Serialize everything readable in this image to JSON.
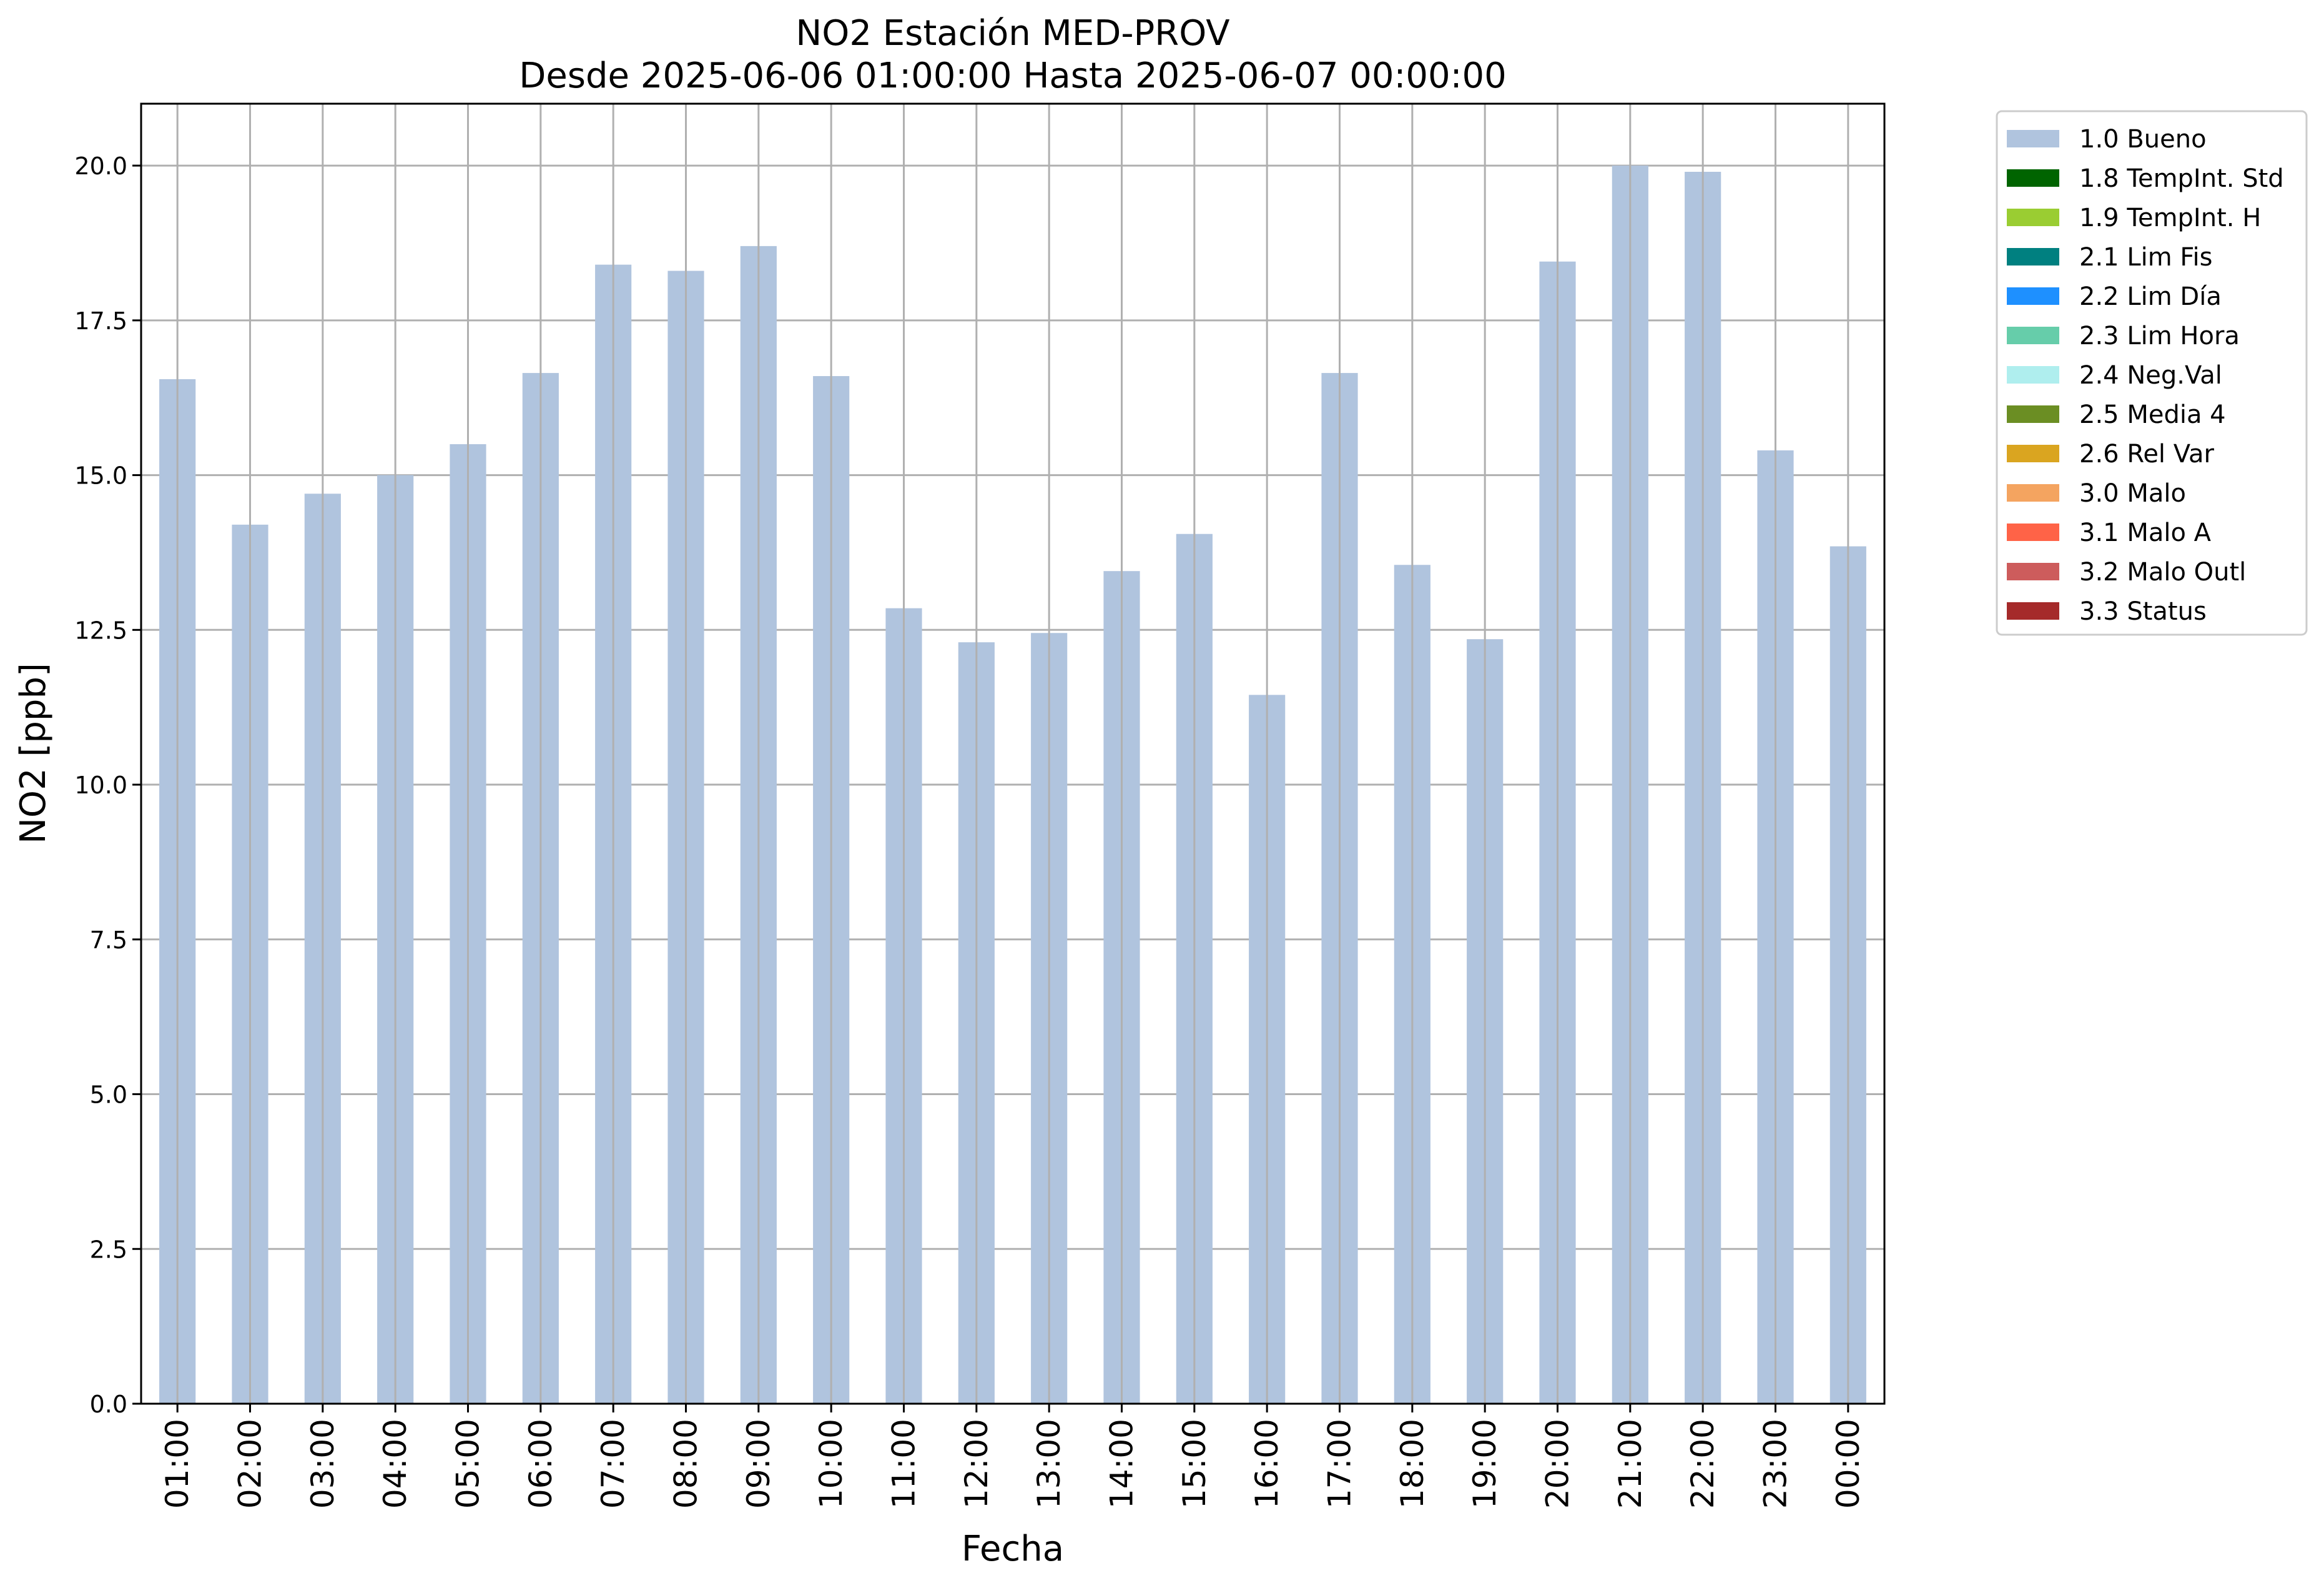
{
  "chart_data": {
    "type": "bar",
    "title": "NO2 Estación MED-PROV",
    "subtitle": "Desde 2025-06-06 01:00:00 Hasta 2025-06-07 00:00:00",
    "xlabel": "Fecha",
    "ylabel": "NO2 [ppb]",
    "ylim": [
      0,
      21
    ],
    "yticks": [
      "0.0",
      "2.5",
      "5.0",
      "7.5",
      "10.0",
      "12.5",
      "15.0",
      "17.5",
      "20.0"
    ],
    "grid": true,
    "legend_position": "outside-right",
    "categories": [
      "01:00",
      "02:00",
      "03:00",
      "04:00",
      "05:00",
      "06:00",
      "07:00",
      "08:00",
      "09:00",
      "10:00",
      "11:00",
      "12:00",
      "13:00",
      "14:00",
      "15:00",
      "16:00",
      "17:00",
      "18:00",
      "19:00",
      "20:00",
      "21:00",
      "22:00",
      "23:00",
      "00:00"
    ],
    "series": [
      {
        "name": "1.0 Bueno",
        "color": "#b0c4de",
        "values": [
          16.55,
          14.2,
          14.7,
          15.0,
          15.5,
          16.65,
          18.4,
          18.3,
          18.7,
          16.6,
          12.85,
          12.3,
          12.45,
          13.45,
          14.05,
          11.45,
          16.65,
          13.55,
          12.35,
          18.45,
          20.0,
          19.9,
          15.4,
          13.85
        ]
      }
    ],
    "legend": [
      {
        "label": "1.0 Bueno",
        "color": "#b0c4de"
      },
      {
        "label": "1.8 TempInt. Std",
        "color": "#006400"
      },
      {
        "label": "1.9 TempInt. H",
        "color": "#9acd32"
      },
      {
        "label": "2.1 Lim Fis",
        "color": "#008080"
      },
      {
        "label": "2.2 Lim Día",
        "color": "#1e90ff"
      },
      {
        "label": "2.3 Lim Hora",
        "color": "#66cdaa"
      },
      {
        "label": "2.4 Neg.Val",
        "color": "#afeeee"
      },
      {
        "label": "2.5 Media 4",
        "color": "#6b8e23"
      },
      {
        "label": "2.6 Rel Var",
        "color": "#daa520"
      },
      {
        "label": "3.0 Malo",
        "color": "#f4a460"
      },
      {
        "label": "3.1 Malo A",
        "color": "#ff6347"
      },
      {
        "label": "3.2 Malo Outl",
        "color": "#cd5c5c"
      },
      {
        "label": "3.3 Status",
        "color": "#a52a2a"
      }
    ]
  }
}
